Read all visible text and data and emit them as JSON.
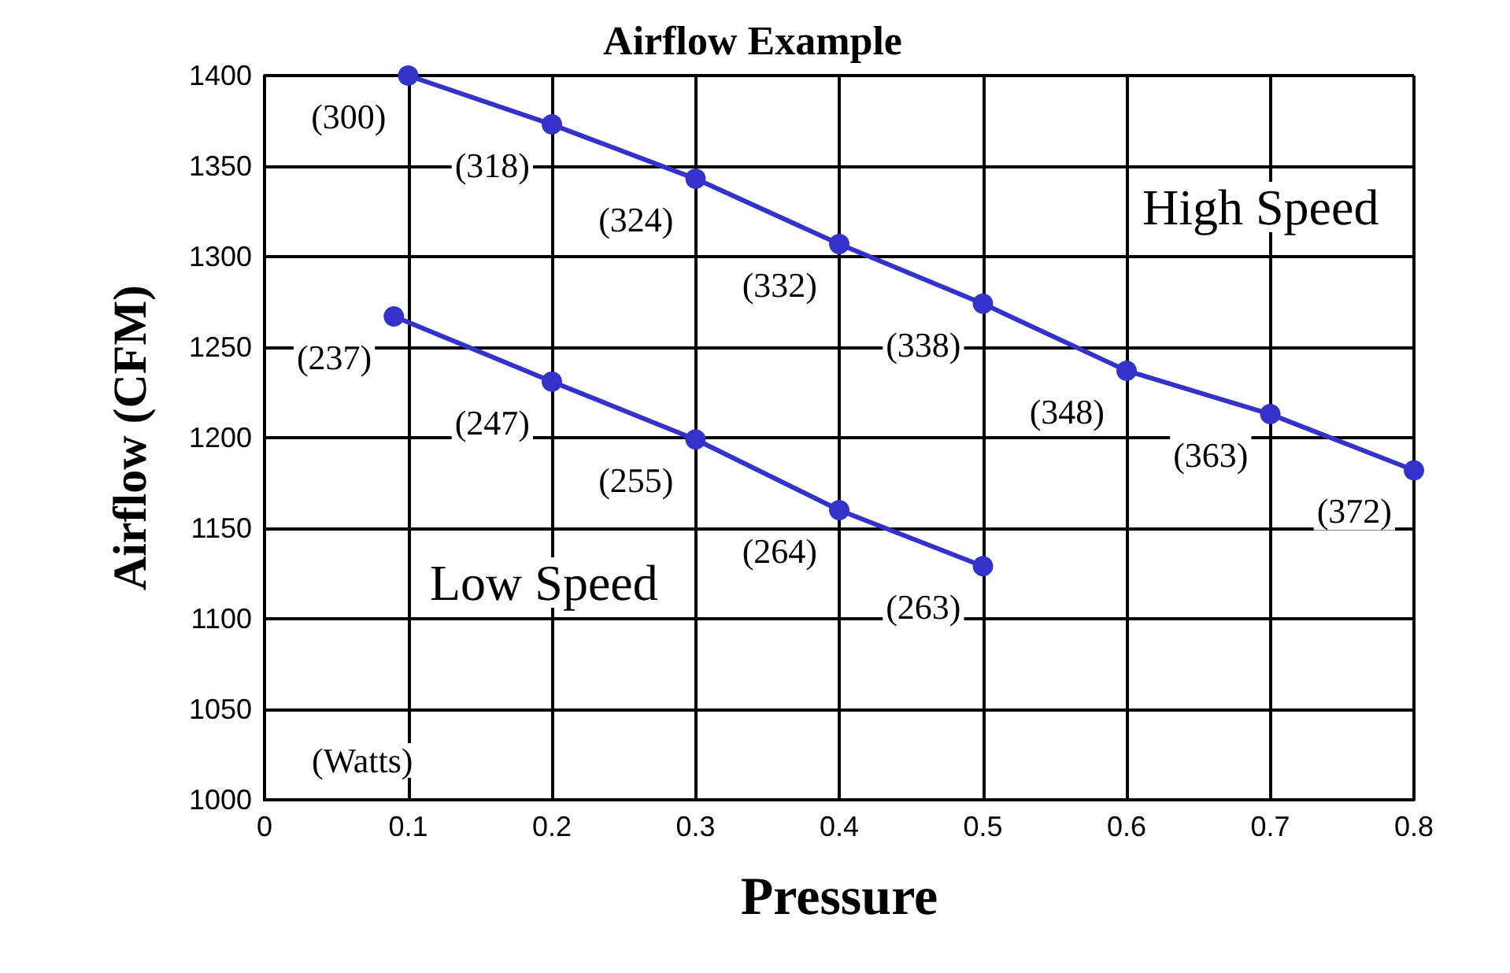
{
  "chart_data": {
    "type": "line",
    "title": "Airflow Example",
    "xlabel": "Pressure",
    "ylabel": "Airflow (CFM)",
    "annotations": [
      "(Watts)",
      {
        "text": "(300)",
        "x": 0.1,
        "y": 1400
      },
      {
        "text": "(318)",
        "x": 0.2,
        "y": 1373
      },
      {
        "text": "(324)",
        "x": 0.3,
        "y": 1343
      },
      {
        "text": "(332)",
        "x": 0.4,
        "y": 1307
      },
      {
        "text": "(338)",
        "x": 0.5,
        "y": 1274
      },
      {
        "text": "(348)",
        "x": 0.6,
        "y": 1237
      },
      {
        "text": "(363)",
        "x": 0.7,
        "y": 1213
      },
      {
        "text": "(372)",
        "x": 0.8,
        "y": 1182
      },
      {
        "text": "(237)",
        "x": 0.09,
        "y": 1267
      },
      {
        "text": "(247)",
        "x": 0.2,
        "y": 1231
      },
      {
        "text": "(255)",
        "x": 0.3,
        "y": 1199
      },
      {
        "text": "(264)",
        "x": 0.4,
        "y": 1160
      },
      {
        "text": "(263)",
        "x": 0.5,
        "y": 1129
      }
    ],
    "xlim": [
      0,
      0.8
    ],
    "xticks": [
      0,
      0.1,
      0.2,
      0.3,
      0.4,
      0.5,
      0.6,
      0.7,
      0.8
    ],
    "ylim": [
      1000,
      1400
    ],
    "yticks": [
      1000,
      1050,
      1100,
      1150,
      1200,
      1250,
      1300,
      1350,
      1400
    ],
    "grid": true,
    "legend": false,
    "marker": "circle",
    "line_style": "solid",
    "series": [
      {
        "name": "High Speed",
        "color": "#3333cc",
        "x": [
          0.1,
          0.2,
          0.3,
          0.4,
          0.5,
          0.6,
          0.7,
          0.8
        ],
        "values": [
          1400,
          1373,
          1343,
          1307,
          1274,
          1237,
          1213,
          1182
        ]
      },
      {
        "name": "Low Speed",
        "color": "#3333cc",
        "x": [
          0.09,
          0.2,
          0.3,
          0.4,
          0.5
        ],
        "values": [
          1267,
          1231,
          1199,
          1160,
          1129
        ]
      }
    ]
  }
}
